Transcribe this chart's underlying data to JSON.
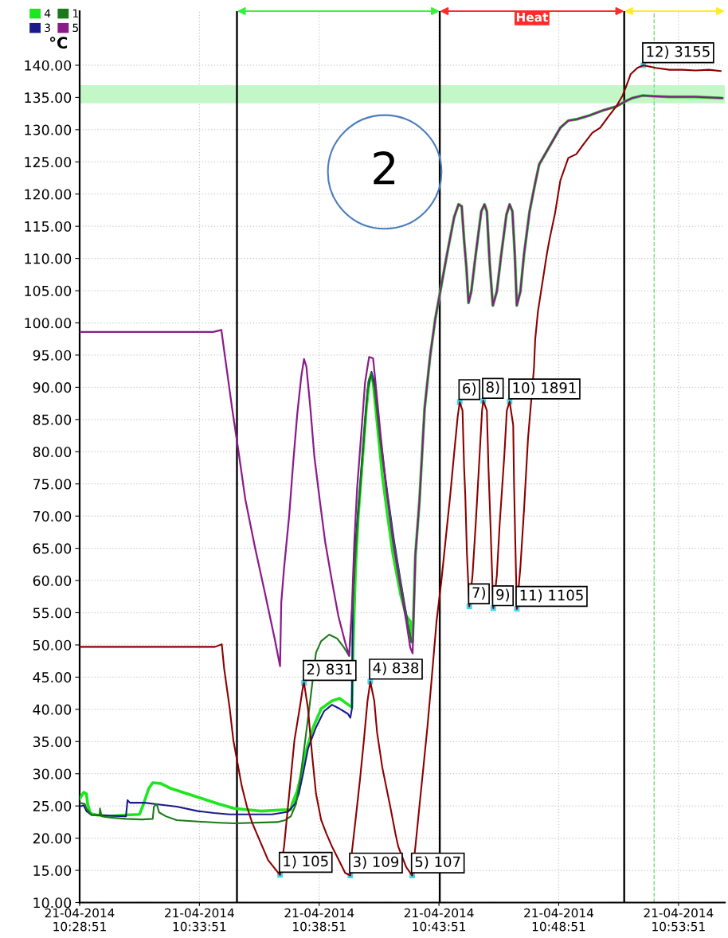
{
  "chart_data": {
    "type": "line",
    "ylabel": "°C",
    "xlim": [
      "2014-04-21T10:28:51",
      "2014-04-21T10:55:47"
    ],
    "ylim": [
      10,
      148.4
    ],
    "xticks": [
      {
        "value": "2014-04-21T10:28:51",
        "label": "21-04-2014\n10:28:51"
      },
      {
        "value": "2014-04-21T10:33:51",
        "label": "21-04-2014\n10:33:51"
      },
      {
        "value": "2014-04-21T10:38:51",
        "label": "21-04-2014\n10:38:51"
      },
      {
        "value": "2014-04-21T10:43:51",
        "label": "21-04-2014\n10:43:51"
      },
      {
        "value": "2014-04-21T10:48:51",
        "label": "21-04-2014\n10:48:51"
      },
      {
        "value": "2014-04-21T10:53:51",
        "label": "21-04-2014\n10:53:51"
      }
    ],
    "yticks": [
      {
        "value": 10,
        "label": "10.00"
      },
      {
        "value": 15,
        "label": "15.00"
      },
      {
        "value": 20,
        "label": "20.00"
      },
      {
        "value": 25,
        "label": "25.00"
      },
      {
        "value": 30,
        "label": "30.00"
      },
      {
        "value": 35,
        "label": "35.00"
      },
      {
        "value": 40,
        "label": "40.00"
      },
      {
        "value": 45,
        "label": "45.00"
      },
      {
        "value": 50,
        "label": "50.00"
      },
      {
        "value": 55,
        "label": "55.00"
      },
      {
        "value": 60,
        "label": "60.00"
      },
      {
        "value": 65,
        "label": "65.00"
      },
      {
        "value": 70,
        "label": "70.00"
      },
      {
        "value": 75,
        "label": "75.00"
      },
      {
        "value": 80,
        "label": "80.00"
      },
      {
        "value": 85,
        "label": "85.00"
      },
      {
        "value": 90,
        "label": "90.00"
      },
      {
        "value": 95,
        "label": "95.00"
      },
      {
        "value": 100,
        "label": "100.00"
      },
      {
        "value": 105,
        "label": "105.00"
      },
      {
        "value": 110,
        "label": "110.00"
      },
      {
        "value": 115,
        "label": "115.00"
      },
      {
        "value": 120,
        "label": "120.00"
      },
      {
        "value": 125,
        "label": "125.00"
      },
      {
        "value": 130,
        "label": "130.00"
      },
      {
        "value": 135,
        "label": "135.00"
      },
      {
        "value": 140,
        "label": "140.00"
      }
    ],
    "grid": true,
    "legend": "top left",
    "series": [
      {
        "name": "4",
        "color": "#1ee61e",
        "x": [
          "2014-04-21T10:28:51",
          "2014-04-21T10:29:01",
          "2014-04-21T10:29:08",
          "2014-04-21T10:29:11",
          "2014-04-21T10:29:18",
          "2014-04-21T10:29:34",
          "2014-04-21T10:30:07",
          "2014-04-21T10:30:47",
          "2014-04-21T10:31:21",
          "2014-04-21T10:31:31",
          "2014-04-21T10:31:44",
          "2014-04-21T10:31:54",
          "2014-04-21T10:32:14",
          "2014-04-21T10:32:40",
          "2014-04-21T10:33:20",
          "2014-04-21T10:34:00",
          "2014-04-21T10:34:40",
          "2014-04-21T10:35:20",
          "2014-04-21T10:35:53",
          "2014-04-21T10:36:26",
          "2014-04-21T10:37:20",
          "2014-04-21T10:37:40",
          "2014-04-21T10:37:43",
          "2014-04-21T10:37:56",
          "2014-04-21T10:38:03",
          "2014-04-21T10:38:16",
          "2014-04-21T10:38:36",
          "2014-04-21T10:38:56",
          "2014-04-21T10:39:23",
          "2014-04-21T10:39:42",
          "2014-04-21T10:40:13",
          "2014-04-21T10:40:16",
          "2014-04-21T10:40:22",
          "2014-04-21T10:40:29",
          "2014-04-21T10:40:39",
          "2014-04-21T10:40:49",
          "2014-04-21T10:40:57",
          "2014-04-21T10:41:01",
          "2014-04-21T10:41:06",
          "2014-04-21T10:41:16",
          "2014-04-21T10:41:29",
          "2014-04-21T10:41:42",
          "2014-04-21T10:41:56",
          "2014-04-21T10:42:15",
          "2014-04-21T10:42:29",
          "2014-04-21T10:42:39",
          "2014-04-21T10:42:45",
          "2014-04-21T10:42:52",
          "2014-04-21T10:43:02",
          "2014-04-21T10:43:15",
          "2014-04-21T10:43:29",
          "2014-04-21T10:43:42",
          "2014-04-21T10:44:11",
          "2014-04-21T10:44:29",
          "2014-04-21T10:44:40",
          "2014-04-21T10:44:48",
          "2014-04-21T10:44:54",
          "2014-04-21T10:45:00",
          "2014-04-21T10:45:05",
          "2014-04-21T10:45:12",
          "2014-04-21T10:45:23",
          "2014-04-21T10:45:37",
          "2014-04-21T10:45:45",
          "2014-04-21T10:45:51",
          "2014-04-21T10:45:58",
          "2014-04-21T10:46:06",
          "2014-04-21T10:46:16",
          "2014-04-21T10:46:27",
          "2014-04-21T10:46:40",
          "2014-04-21T10:46:48",
          "2014-04-21T10:46:55",
          "2014-04-21T10:47:01",
          "2014-04-21T10:47:06",
          "2014-04-21T10:47:15",
          "2014-04-21T10:47:24",
          "2014-04-21T10:47:38",
          "2014-04-21T10:47:52",
          "2014-04-21T10:48:02",
          "2014-04-21T10:48:28",
          "2014-04-21T10:48:55",
          "2014-04-21T10:49:15",
          "2014-04-21T10:49:35",
          "2014-04-21T10:50:08",
          "2014-04-21T10:50:42",
          "2014-04-21T10:51:15",
          "2014-04-21T10:51:38",
          "2014-04-21T10:51:55",
          "2014-04-21T10:52:21",
          "2014-04-21T10:52:48",
          "2014-04-21T10:53:28",
          "2014-04-21T10:54:34",
          "2014-04-21T10:55:41"
        ],
        "values": [
          26.1,
          27.1,
          26.9,
          25.3,
          23.8,
          23.6,
          23.4,
          23.6,
          23.7,
          25.3,
          27.7,
          28.6,
          28.5,
          27.7,
          26.9,
          26.1,
          25.3,
          24.6,
          24.4,
          24.2,
          24.4,
          24.4,
          25.3,
          27.3,
          29.0,
          33.1,
          37.2,
          40.1,
          41.3,
          41.7,
          40.3,
          49.6,
          61.9,
          70.2,
          78.4,
          86.7,
          91.2,
          91.8,
          90.8,
          84.6,
          76.4,
          70.2,
          64.0,
          57.8,
          54.5,
          53.7,
          50.5,
          64.0,
          72.2,
          86.7,
          94.9,
          100.7,
          110.6,
          116.4,
          118.4,
          118.1,
          112.8,
          108.4,
          103.1,
          104.9,
          110.6,
          117.3,
          118.4,
          117.3,
          109.3,
          102.7,
          104.9,
          110.6,
          116.8,
          118.4,
          117.3,
          110.6,
          102.7,
          104.9,
          110.6,
          117.3,
          121.7,
          124.6,
          127.4,
          130.3,
          131.4,
          131.6,
          132.2,
          133.0,
          133.6,
          134.4,
          134.9,
          135.3,
          135.2,
          135.1,
          135.1,
          134.9
        ]
      },
      {
        "name": "3",
        "color": "#1a1a8a",
        "x": [
          "2014-04-21T10:28:51",
          "2014-04-21T10:29:01",
          "2014-04-21T10:29:08",
          "2014-04-21T10:29:21",
          "2014-04-21T10:30:47",
          "2014-04-21T10:30:51",
          "2014-04-21T10:30:57",
          "2014-04-21T10:31:34",
          "2014-04-21T10:32:00",
          "2014-04-21T10:32:54",
          "2014-04-21T10:33:47",
          "2014-04-21T10:34:27",
          "2014-04-21T10:35:07",
          "2014-04-21T10:36:53",
          "2014-04-21T10:37:33",
          "2014-04-21T10:37:50",
          "2014-04-21T10:38:00",
          "2014-04-21T10:38:10",
          "2014-04-21T10:38:23",
          "2014-04-21T10:38:43",
          "2014-04-21T10:39:03",
          "2014-04-21T10:39:23",
          "2014-04-21T10:39:42",
          "2014-04-21T10:40:03",
          "2014-04-21T10:40:09",
          "2014-04-21T10:40:13",
          "2014-04-21T10:40:15",
          "2014-04-21T10:40:22",
          "2014-04-21T10:40:33",
          "2014-04-21T10:40:43",
          "2014-04-21T10:40:52",
          "2014-04-21T10:41:02",
          "2014-04-21T10:41:09",
          "2014-04-21T10:41:25",
          "2014-04-21T10:41:42",
          "2014-04-21T10:41:59",
          "2014-04-21T10:42:15",
          "2014-04-21T10:42:32",
          "2014-04-21T10:42:42"
        ],
        "values": [
          24.9,
          25.1,
          24.2,
          23.6,
          23.4,
          25.9,
          25.5,
          25.5,
          25.3,
          24.9,
          24.2,
          23.9,
          23.7,
          23.7,
          24.1,
          25.3,
          26.9,
          29.8,
          33.9,
          37.2,
          39.7,
          40.7,
          40.1,
          39.3,
          38.7,
          40.1,
          55.8,
          66.0,
          74.3,
          82.5,
          89.6,
          92.4,
          90.8,
          81.7,
          73.5,
          66.0,
          59.9,
          53.7,
          50.4
        ]
      },
      {
        "name": "1",
        "color": "#1a7a1a",
        "x": [
          "2014-04-21T10:28:51",
          "2014-04-21T10:29:04",
          "2014-04-21T10:29:08",
          "2014-04-21T10:29:21",
          "2014-04-21T10:29:41",
          "2014-04-21T10:29:42",
          "2014-04-21T10:29:46",
          "2014-04-21T10:30:07",
          "2014-04-21T10:30:47",
          "2014-04-21T10:31:27",
          "2014-04-21T10:31:54",
          "2014-04-21T10:31:57",
          "2014-04-21T10:32:04",
          "2014-04-21T10:32:10",
          "2014-04-21T10:32:27",
          "2014-04-21T10:32:54",
          "2014-04-21T10:33:40",
          "2014-04-21T10:34:40",
          "2014-04-21T10:35:20",
          "2014-04-21T10:37:06",
          "2014-04-21T10:37:26",
          "2014-04-21T10:37:40",
          "2014-04-21T10:37:53",
          "2014-04-21T10:38:03",
          "2014-04-21T10:38:16",
          "2014-04-21T10:38:26",
          "2014-04-21T10:38:43",
          "2014-04-21T10:38:56",
          "2014-04-21T10:39:16",
          "2014-04-21T10:39:36",
          "2014-04-21T10:39:53",
          "2014-04-21T10:40:06",
          "2014-04-21T10:40:16",
          "2014-04-21T10:40:26",
          "2014-04-21T10:40:36",
          "2014-04-21T10:40:46",
          "2014-04-21T10:40:54",
          "2014-04-21T10:41:01",
          "2014-04-21T10:41:09",
          "2014-04-21T10:41:25",
          "2014-04-21T10:41:42",
          "2014-04-21T10:41:59",
          "2014-04-21T10:42:15",
          "2014-04-21T10:42:32",
          "2014-04-21T10:42:42"
        ],
        "values": [
          25.5,
          25.3,
          24.6,
          23.6,
          23.6,
          24.6,
          23.4,
          23.2,
          23.0,
          22.9,
          23.0,
          24.9,
          25.3,
          24.0,
          23.4,
          22.8,
          22.6,
          22.4,
          22.3,
          22.5,
          22.8,
          23.4,
          25.3,
          29.0,
          35.2,
          40.1,
          48.8,
          50.6,
          51.6,
          51.0,
          49.6,
          48.3,
          57.8,
          68.1,
          76.4,
          84.6,
          90.8,
          92.2,
          90.0,
          81.0,
          73.0,
          65.5,
          59.5,
          53.5,
          50.5
        ]
      },
      {
        "name": "5",
        "color": "#8b1a8b",
        "x": [
          "2014-04-21T10:28:51",
          "2014-04-21T10:34:26",
          "2014-04-21T10:34:46",
          "2014-04-21T10:34:53",
          "2014-04-21T10:35:13",
          "2014-04-21T10:35:29",
          "2014-04-21T10:35:46",
          "2014-04-21T10:36:10",
          "2014-04-21T10:36:36",
          "2014-04-21T10:37:00",
          "2014-04-21T10:37:13",
          "2014-04-21T10:37:16",
          "2014-04-21T10:37:23",
          "2014-04-21T10:37:36",
          "2014-04-21T10:37:46",
          "2014-04-21T10:37:56",
          "2014-04-21T10:38:06",
          "2014-04-21T10:38:13",
          "2014-04-21T10:38:19",
          "2014-04-21T10:38:29",
          "2014-04-21T10:38:39",
          "2014-04-21T10:38:53",
          "2014-04-21T10:39:06",
          "2014-04-21T10:39:23",
          "2014-04-21T10:39:39",
          "2014-04-21T10:39:56",
          "2014-04-21T10:40:06",
          "2014-04-21T10:40:13",
          "2014-04-21T10:40:19",
          "2014-04-21T10:40:26",
          "2014-04-21T10:40:36",
          "2014-04-21T10:40:46",
          "2014-04-21T10:40:56",
          "2014-04-21T10:41:06",
          "2014-04-21T10:41:12",
          "2014-04-21T10:41:25",
          "2014-04-21T10:41:39",
          "2014-04-21T10:41:56",
          "2014-04-21T10:42:12",
          "2014-04-21T10:42:29",
          "2014-04-21T10:42:39",
          "2014-04-21T10:42:45",
          "2014-04-21T10:42:52",
          "2014-04-21T10:43:02",
          "2014-04-21T10:43:15",
          "2014-04-21T10:43:29",
          "2014-04-21T10:43:42",
          "2014-04-21T10:44:11",
          "2014-04-21T10:44:29",
          "2014-04-21T10:44:40",
          "2014-04-21T10:44:48",
          "2014-04-21T10:44:54",
          "2014-04-21T10:45:00",
          "2014-04-21T10:45:05",
          "2014-04-21T10:45:12",
          "2014-04-21T10:45:23",
          "2014-04-21T10:45:37",
          "2014-04-21T10:45:45",
          "2014-04-21T10:45:51",
          "2014-04-21T10:45:58",
          "2014-04-21T10:46:06",
          "2014-04-21T10:46:16",
          "2014-04-21T10:46:27",
          "2014-04-21T10:46:40",
          "2014-04-21T10:46:48",
          "2014-04-21T10:46:55",
          "2014-04-21T10:47:01",
          "2014-04-21T10:47:06",
          "2014-04-21T10:47:15",
          "2014-04-21T10:47:24",
          "2014-04-21T10:47:38",
          "2014-04-21T10:47:52",
          "2014-04-21T10:48:02",
          "2014-04-21T10:48:28",
          "2014-04-21T10:48:55",
          "2014-04-21T10:49:15",
          "2014-04-21T10:49:35",
          "2014-04-21T10:50:08",
          "2014-04-21T10:50:42",
          "2014-04-21T10:51:15",
          "2014-04-21T10:51:38",
          "2014-04-21T10:51:55",
          "2014-04-21T10:52:21",
          "2014-04-21T10:52:48",
          "2014-04-21T10:53:28",
          "2014-04-21T10:54:34",
          "2014-04-21T10:55:41"
        ],
        "values": [
          98.6,
          98.6,
          98.9,
          95.7,
          86.7,
          80.0,
          72.6,
          65.2,
          57.8,
          50.8,
          46.7,
          56.6,
          61.9,
          70.2,
          78.4,
          85.8,
          91.6,
          94.4,
          93.2,
          86.7,
          79.2,
          72.2,
          66.0,
          59.9,
          54.5,
          50.4,
          48.3,
          55.8,
          66.0,
          74.3,
          82.5,
          90.8,
          94.7,
          94.5,
          90.8,
          82.5,
          74.3,
          66.0,
          59.9,
          53.7,
          49.6,
          48.7,
          64.0,
          72.2,
          86.7,
          94.9,
          100.7,
          110.6,
          116.4,
          118.4,
          118.1,
          112.8,
          108.4,
          103.1,
          104.9,
          110.6,
          117.3,
          118.4,
          117.3,
          109.3,
          102.7,
          104.9,
          110.6,
          116.8,
          118.4,
          117.3,
          110.6,
          102.7,
          104.9,
          110.6,
          117.3,
          121.7,
          124.6,
          127.4,
          130.3,
          131.4,
          131.6,
          132.2,
          133.0,
          133.6,
          134.4,
          134.9,
          135.3,
          135.2,
          135.1,
          135.1,
          134.9
        ]
      },
      {
        "color": "#8b0000",
        "x": [
          "2014-04-21T10:28:51",
          "2014-04-21T10:34:30",
          "2014-04-21T10:34:47",
          "2014-04-21T10:34:53",
          "2014-04-21T10:35:07",
          "2014-04-21T10:35:16",
          "2014-04-21T10:35:27",
          "2014-04-21T10:35:37",
          "2014-04-21T10:35:50",
          "2014-04-21T10:36:03",
          "2014-04-21T10:36:23",
          "2014-04-21T10:36:43",
          "2014-04-21T10:37:06",
          "2014-04-21T10:37:13",
          "2014-04-21T10:37:23",
          "2014-04-21T10:37:36",
          "2014-04-21T10:37:49",
          "2014-04-21T10:38:03",
          "2014-04-21T10:38:11",
          "2014-04-21T10:38:13",
          "2014-04-21T10:38:23",
          "2014-04-21T10:38:33",
          "2014-04-21T10:38:43",
          "2014-04-21T10:38:56",
          "2014-04-21T10:39:09",
          "2014-04-21T10:39:23",
          "2014-04-21T10:39:41",
          "2014-04-21T10:39:56",
          "2014-04-21T10:40:09",
          "2014-04-21T10:40:13",
          "2014-04-21T10:40:22",
          "2014-04-21T10:40:33",
          "2014-04-21T10:40:43",
          "2014-04-21T10:40:52",
          "2014-04-21T10:40:59",
          "2014-04-21T10:41:09",
          "2014-04-21T10:41:16",
          "2014-04-21T10:41:29",
          "2014-04-21T10:41:49",
          "2014-04-21T10:42:02",
          "2014-04-21T10:42:09",
          "2014-04-21T10:42:29",
          "2014-04-21T10:42:44",
          "2014-04-21T10:42:52",
          "2014-04-21T10:43:02",
          "2014-04-21T10:43:12",
          "2014-04-21T10:43:22",
          "2014-04-21T10:43:32",
          "2014-04-21T10:43:45",
          "2014-04-21T10:43:57",
          "2014-04-21T10:44:08",
          "2014-04-21T10:44:19",
          "2014-04-21T10:44:29",
          "2014-04-21T10:44:38",
          "2014-04-21T10:44:43",
          "2014-04-21T10:44:50",
          "2014-04-21T10:44:54",
          "2014-04-21T10:44:57",
          "2014-04-21T10:45:01",
          "2014-04-21T10:45:07",
          "2014-04-21T10:45:15",
          "2014-04-21T10:45:23",
          "2014-04-21T10:45:33",
          "2014-04-21T10:45:39",
          "2014-04-21T10:45:42",
          "2014-04-21T10:45:51",
          "2014-04-21T10:45:55",
          "2014-04-21T10:46:00",
          "2014-04-21T10:46:07",
          "2014-04-21T10:46:16",
          "2014-04-21T10:46:23",
          "2014-04-21T10:46:35",
          "2014-04-21T10:46:41",
          "2014-04-21T10:46:48",
          "2014-04-21T10:46:57",
          "2014-04-21T10:46:59",
          "2014-04-21T10:47:02",
          "2014-04-21T10:47:06",
          "2014-04-21T10:47:15",
          "2014-04-21T10:47:24",
          "2014-04-21T10:47:34",
          "2014-04-21T10:47:49",
          "2014-04-21T10:47:52",
          "2014-04-21T10:47:59",
          "2014-04-21T10:48:10",
          "2014-04-21T10:48:21",
          "2014-04-21T10:48:28",
          "2014-04-21T10:48:42",
          "2014-04-21T10:48:55",
          "2014-04-21T10:49:15",
          "2014-04-21T10:49:35",
          "2014-04-21T10:49:55",
          "2014-04-21T10:50:15",
          "2014-04-21T10:50:35",
          "2014-04-21T10:50:55",
          "2014-04-21T10:51:15",
          "2014-04-21T10:51:31",
          "2014-04-21T10:51:41",
          "2014-04-21T10:51:51",
          "2014-04-21T10:52:08",
          "2014-04-21T10:52:23",
          "2014-04-21T10:52:54",
          "2014-04-21T10:53:28",
          "2014-04-21T10:54:01",
          "2014-04-21T10:54:34",
          "2014-04-21T10:55:07",
          "2014-04-21T10:55:37"
        ],
        "values": [
          49.7,
          49.7,
          50.1,
          46.3,
          40.1,
          35.2,
          31.5,
          28.1,
          24.9,
          22.4,
          19.5,
          16.6,
          14.8,
          14.3,
          18.7,
          26.9,
          35.2,
          40.5,
          43.8,
          44.1,
          40.1,
          33.1,
          26.9,
          22.8,
          20.7,
          18.7,
          16.5,
          14.6,
          14.2,
          17.9,
          22.8,
          29.0,
          35.2,
          41.3,
          44.3,
          41.3,
          36.4,
          31.0,
          24.9,
          20.7,
          18.7,
          15.5,
          14.2,
          18.7,
          24.9,
          31.0,
          37.2,
          44.2,
          53.7,
          59.9,
          66.5,
          73.1,
          79.7,
          85.5,
          87.7,
          86.4,
          77.5,
          73.1,
          64.3,
          56.0,
          60.8,
          68.7,
          79.7,
          86.4,
          87.9,
          86.4,
          77.5,
          68.7,
          55.7,
          60.8,
          68.7,
          79.7,
          86.4,
          87.8,
          84.1,
          75.3,
          66.5,
          55.6,
          62.1,
          70.9,
          82.0,
          93.0,
          97.4,
          101.8,
          106.2,
          110.6,
          113.0,
          117.1,
          122.1,
          125.6,
          126.2,
          127.9,
          129.5,
          130.3,
          132.0,
          133.6,
          135.3,
          136.9,
          138.6,
          139.6,
          140.0,
          139.6,
          139.3,
          139.3,
          139.2,
          139.3,
          139.1
        ]
      }
    ],
    "ref_lines": [
      {
        "axis": "x",
        "value": "2014-04-21T10:35:25",
        "color": "#000000"
      },
      {
        "axis": "x",
        "value": "2014-04-21T10:43:53",
        "color": "#000000"
      },
      {
        "axis": "x",
        "value": "2014-04-21T10:51:35",
        "color": "#000000"
      },
      {
        "axis": "x",
        "value": "2014-04-21T10:52:50",
        "color": "#7ddc7d",
        "line_style": "dashed"
      }
    ],
    "bands": [
      {
        "axis": "y",
        "from": 134.1,
        "to": 136.9,
        "color": "#c4f7c8"
      }
    ],
    "annotations": [
      {
        "text": "1) 105",
        "x": "2014-04-21T10:37:13",
        "y": 14.3
      },
      {
        "text": "2) 831",
        "x": "2014-04-21T10:38:13",
        "y": 44.1
      },
      {
        "text": "3) 109",
        "x": "2014-04-21T10:40:09",
        "y": 14.2
      },
      {
        "text": "4) 838",
        "x": "2014-04-21T10:40:59",
        "y": 44.3
      },
      {
        "text": "5) 107",
        "x": "2014-04-21T10:42:44",
        "y": 14.2
      },
      {
        "text": "6)",
        "x": "2014-04-21T10:44:43",
        "y": 87.7
      },
      {
        "text": "7)",
        "x": "2014-04-21T10:45:07",
        "y": 56.0
      },
      {
        "text": "8)",
        "x": "2014-04-21T10:45:42",
        "y": 87.9
      },
      {
        "text": "9)",
        "x": "2014-04-21T10:46:07",
        "y": 55.7
      },
      {
        "text": "10) 1891",
        "x": "2014-04-21T10:46:48",
        "y": 87.8
      },
      {
        "text": "11) 1105",
        "x": "2014-04-21T10:47:06",
        "y": 55.6
      },
      {
        "text": "12) 3155",
        "x": "2014-04-21T10:52:23",
        "y": 140.0
      },
      {
        "text": "Heat",
        "x": "2014-04-21T10:47:44",
        "y": 147.3
      },
      "2"
    ]
  }
}
